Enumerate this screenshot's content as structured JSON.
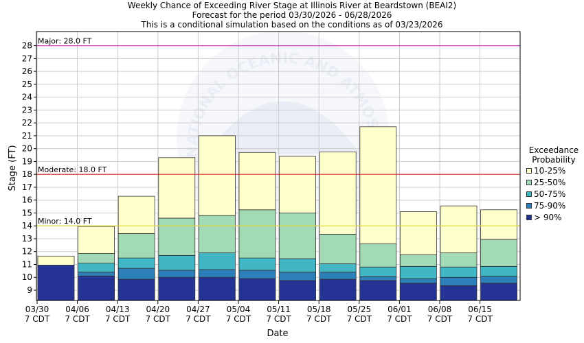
{
  "title": [
    "Weekly Chance of Exceeding River Stage at Illinois River at Beardstown (BEAI2)",
    "Forecast for the period 03/30/2026 - 06/28/2026",
    "This is a conditional simulation based on the conditions as of 03/23/2026"
  ],
  "watermark": "NATIONAL OCEANIC AND ATMOSPHERIC ADMINISTRATION",
  "legend": {
    "title_line1": "Exceedance",
    "title_line2": "Probability",
    "items": [
      {
        "label": "10-25%",
        "color": "#ffffcc"
      },
      {
        "label": "25-50%",
        "color": "#a1dab4"
      },
      {
        "label": "50-75%",
        "color": "#41b6c4"
      },
      {
        "label": "75-90%",
        "color": "#2c7fb8"
      },
      {
        "label": "> 90%",
        "color": "#253494"
      }
    ]
  },
  "chart_data": {
    "type": "bar",
    "xlabel": "Date",
    "ylabel": "Stage (FT)",
    "ylim": [
      8.2,
      29.1
    ],
    "yticks": [
      9,
      10,
      11,
      12,
      13,
      14,
      15,
      16,
      17,
      18,
      19,
      20,
      21,
      22,
      23,
      24,
      25,
      26,
      27,
      28
    ],
    "xticks": [
      {
        "line1": "03/30",
        "line2": "7 CDT"
      },
      {
        "line1": "04/06",
        "line2": "7 CDT"
      },
      {
        "line1": "04/13",
        "line2": "7 CDT"
      },
      {
        "line1": "04/20",
        "line2": "7 CDT"
      },
      {
        "line1": "04/27",
        "line2": "7 CDT"
      },
      {
        "line1": "05/04",
        "line2": "7 CDT"
      },
      {
        "line1": "05/11",
        "line2": "7 CDT"
      },
      {
        "line1": "05/18",
        "line2": "7 CDT"
      },
      {
        "line1": "05/25",
        "line2": "7 CDT"
      },
      {
        "line1": "06/01",
        "line2": "7 CDT"
      },
      {
        "line1": "06/08",
        "line2": "7 CDT"
      },
      {
        "line1": "06/15",
        "line2": "7 CDT"
      }
    ],
    "flood_levels": [
      {
        "label": "Major: 28.0 FT",
        "value": 28.0,
        "color": "#cc44cc"
      },
      {
        "label": "Moderate: 18.0 FT",
        "value": 18.0,
        "color": "#dd2222"
      },
      {
        "label": "Minor: 14.0 FT",
        "value": 14.0,
        "color": "#dddd33"
      }
    ],
    "series_columns": [
      "> 90%",
      "75-90%",
      "50-75%",
      "25-50%",
      "10-25%"
    ],
    "weeks": [
      [
        10.95,
        10.95,
        10.95,
        10.95,
        11.65
      ],
      [
        10.1,
        10.4,
        11.1,
        11.85,
        13.95
      ],
      [
        9.85,
        10.7,
        11.5,
        13.4,
        16.3
      ],
      [
        10.0,
        10.55,
        11.7,
        14.6,
        19.3
      ],
      [
        10.0,
        10.6,
        11.9,
        14.8,
        21.0
      ],
      [
        9.9,
        10.55,
        11.5,
        15.25,
        19.7
      ],
      [
        9.75,
        10.4,
        11.45,
        15.0,
        19.4
      ],
      [
        9.85,
        10.4,
        11.05,
        13.35,
        19.75
      ],
      [
        9.75,
        10.05,
        10.8,
        12.6,
        21.7
      ],
      [
        9.55,
        9.9,
        10.85,
        11.75,
        15.1
      ],
      [
        9.35,
        10.0,
        10.8,
        11.9,
        15.55
      ],
      [
        9.55,
        10.1,
        10.85,
        12.95,
        15.25
      ]
    ]
  }
}
